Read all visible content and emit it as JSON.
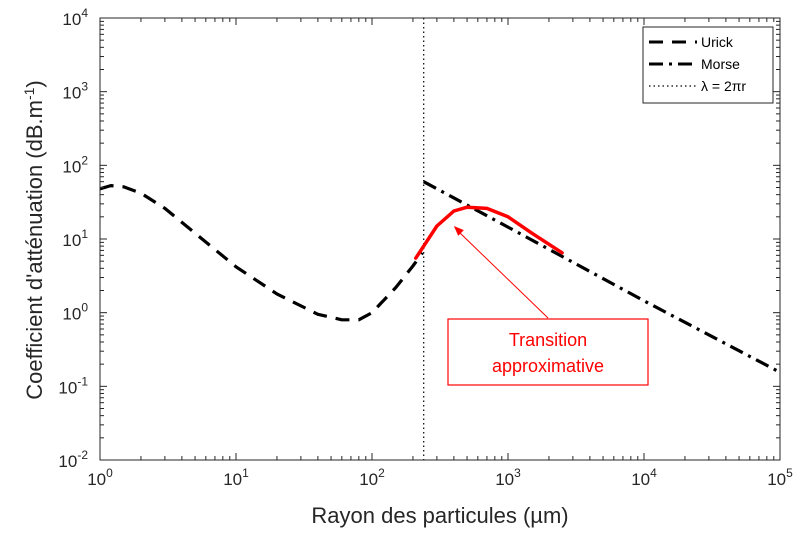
{
  "chart_data": {
    "type": "line",
    "xlabel": "Rayon des particules (µm)",
    "ylabel": "Coefficient d'atténuation (dB.m",
    "ylabel_sup": "-1",
    "ylabel_end": ")",
    "x_scale": "log",
    "y_scale": "log",
    "xlim": [
      1,
      100000
    ],
    "ylim": [
      0.01,
      10000
    ],
    "x_ticks": [
      {
        "value": 1,
        "base": "10",
        "exp": "0"
      },
      {
        "value": 10,
        "base": "10",
        "exp": "1"
      },
      {
        "value": 100,
        "base": "10",
        "exp": "2"
      },
      {
        "value": 1000,
        "base": "10",
        "exp": "3"
      },
      {
        "value": 10000,
        "base": "10",
        "exp": "4"
      },
      {
        "value": 100000,
        "base": "10",
        "exp": "5"
      }
    ],
    "y_ticks": [
      {
        "value": 0.01,
        "base": "10",
        "exp": "-2"
      },
      {
        "value": 0.1,
        "base": "10",
        "exp": "-1"
      },
      {
        "value": 1,
        "base": "10",
        "exp": "0"
      },
      {
        "value": 10,
        "base": "10",
        "exp": "1"
      },
      {
        "value": 100,
        "base": "10",
        "exp": "2"
      },
      {
        "value": 1000,
        "base": "10",
        "exp": "3"
      },
      {
        "value": 10000,
        "base": "10",
        "exp": "4"
      }
    ],
    "grid": false,
    "legend_position": "top-right",
    "series": [
      {
        "name": "Urick",
        "style": "dashed",
        "color": "#000000",
        "x": [
          1,
          1.2,
          1.5,
          2,
          3,
          5,
          10,
          20,
          40,
          60,
          80,
          100,
          150,
          200,
          235
        ],
        "y": [
          48,
          53,
          51,
          42,
          26,
          12,
          4.2,
          1.8,
          0.95,
          0.8,
          0.8,
          1.0,
          2.2,
          4.3,
          6.5
        ]
      },
      {
        "name": "Morse",
        "style": "dashdot",
        "color": "#000000",
        "x": [
          240,
          1000,
          10000,
          100000
        ],
        "y": [
          60,
          14.5,
          1.45,
          0.155
        ]
      },
      {
        "name": "λ = 2πr",
        "style": "dotted",
        "color": "#000000",
        "vertical_x": 240
      },
      {
        "style": "solid",
        "color": "#ff0000",
        "x": [
          210,
          250,
          300,
          400,
          500,
          700,
          1000,
          1500,
          2500
        ],
        "y": [
          5.5,
          9,
          15,
          24,
          27,
          26,
          20,
          12,
          6.5
        ]
      }
    ],
    "legend": [
      {
        "label": "Urick",
        "style": "dashed"
      },
      {
        "label": "Morse",
        "style": "dashdot"
      },
      {
        "label": "λ = 2πr",
        "style": "dotted"
      }
    ],
    "annotation": {
      "lines": [
        "Transition",
        "approximative"
      ],
      "color": "#ff0000",
      "arrow_target": {
        "x": 400,
        "y": 15
      }
    }
  }
}
